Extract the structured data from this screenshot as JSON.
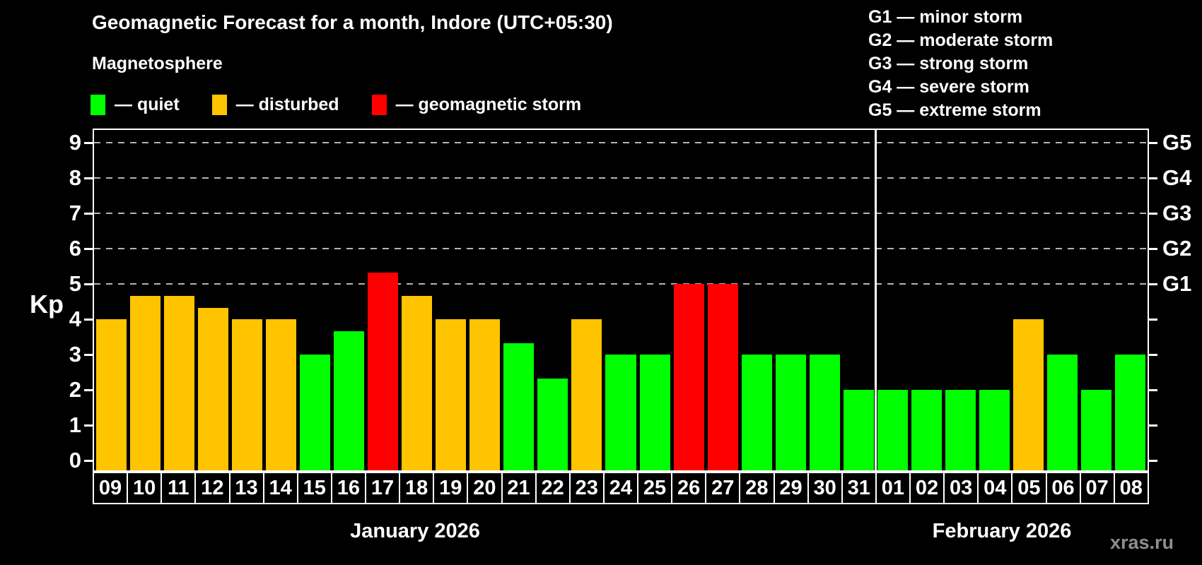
{
  "header": {
    "title": "Geomagnetic Forecast for a month, Indore (UTC+05:30)",
    "subtitle": "Magnetosphere"
  },
  "legend": {
    "items": [
      {
        "key": "quiet",
        "label": "— quiet",
        "color": "#00ff00"
      },
      {
        "key": "disturbed",
        "label": "— disturbed",
        "color": "#ffc400"
      },
      {
        "key": "storm",
        "label": "— geomagnetic storm",
        "color": "#ff0000"
      }
    ]
  },
  "g_scale_legend": [
    "G1 — minor storm",
    "G2 — moderate storm",
    "G3 — strong storm",
    "G4 — severe storm",
    "G5 — extreme storm"
  ],
  "watermark": "xras.ru",
  "chart_data": {
    "type": "bar",
    "title": "Geomagnetic Forecast for a month, Indore (UTC+05:30)",
    "ylabel": "Kp",
    "ylim": [
      0,
      9.4
    ],
    "grid": "dashed horizontal at Kp 5-9",
    "legend_position": "top-left",
    "y_ticks": [
      0,
      1,
      2,
      3,
      4,
      5,
      6,
      7,
      8,
      9
    ],
    "gridlines_at": [
      5,
      6,
      7,
      8,
      9
    ],
    "right_axis_labels": [
      {
        "value": 5,
        "label": "G1"
      },
      {
        "value": 6,
        "label": "G2"
      },
      {
        "value": 7,
        "label": "G3"
      },
      {
        "value": 8,
        "label": "G4"
      },
      {
        "value": 9,
        "label": "G5"
      }
    ],
    "categories": [
      "09",
      "10",
      "11",
      "12",
      "13",
      "14",
      "15",
      "16",
      "17",
      "18",
      "19",
      "20",
      "21",
      "22",
      "23",
      "24",
      "25",
      "26",
      "27",
      "28",
      "29",
      "30",
      "31",
      "01",
      "02",
      "03",
      "04",
      "05",
      "06",
      "07",
      "08"
    ],
    "values": [
      4,
      4.67,
      4.67,
      4.33,
      4,
      4,
      3,
      3.67,
      5.33,
      4.67,
      4,
      4,
      3.33,
      2.33,
      4,
      3,
      3,
      5,
      5,
      3,
      3,
      3,
      2,
      2,
      2,
      2,
      2,
      4,
      3,
      2,
      3
    ],
    "statuses": [
      "disturbed",
      "disturbed",
      "disturbed",
      "disturbed",
      "disturbed",
      "disturbed",
      "quiet",
      "quiet",
      "storm",
      "disturbed",
      "disturbed",
      "disturbed",
      "quiet",
      "quiet",
      "disturbed",
      "quiet",
      "quiet",
      "storm",
      "storm",
      "quiet",
      "quiet",
      "quiet",
      "quiet",
      "quiet",
      "quiet",
      "quiet",
      "quiet",
      "disturbed",
      "quiet",
      "quiet",
      "quiet"
    ],
    "status_colors": {
      "quiet": "#00ff00",
      "disturbed": "#ffc400",
      "storm": "#ff0000"
    },
    "months": [
      {
        "label": "January 2026",
        "days": 23
      },
      {
        "label": "February 2026",
        "days": 8
      }
    ]
  }
}
